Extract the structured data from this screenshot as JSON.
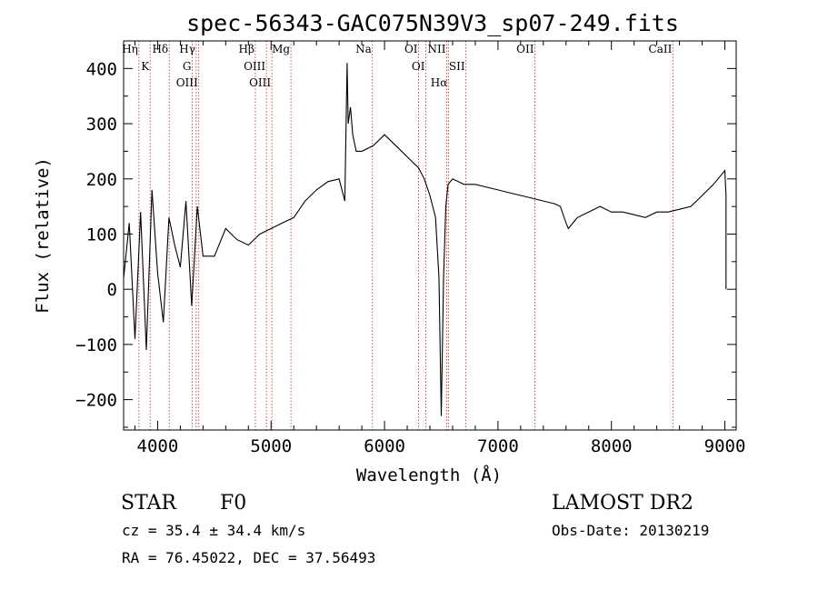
{
  "chart_data": {
    "type": "line",
    "title": "spec-56343-GAC075N39V3_sp07-249.fits",
    "xlabel": "Wavelength (Å)",
    "ylabel": "Flux (relative)",
    "xlim": [
      3700,
      9100
    ],
    "ylim": [
      -255,
      450
    ],
    "xticks": [
      4000,
      5000,
      6000,
      7000,
      8000,
      9000
    ],
    "xtick_labels": [
      "4000",
      "5000",
      "6000",
      "7000",
      "8000",
      "9000"
    ],
    "yticks": [
      -200,
      -100,
      0,
      100,
      200,
      300,
      400
    ],
    "ytick_labels": [
      "−200",
      "−100",
      "0",
      "100",
      "200",
      "300",
      "400"
    ],
    "grid": false,
    "series": [
      {
        "name": "spectrum",
        "x": [
          3700,
          3750,
          3800,
          3850,
          3900,
          3950,
          4000,
          4050,
          4100,
          4150,
          4200,
          4250,
          4300,
          4350,
          4400,
          4500,
          4600,
          4700,
          4800,
          4900,
          5000,
          5100,
          5200,
          5300,
          5400,
          5500,
          5600,
          5650,
          5670,
          5680,
          5700,
          5720,
          5750,
          5800,
          5900,
          6000,
          6100,
          6200,
          6300,
          6350,
          6400,
          6450,
          6480,
          6500,
          6520,
          6540,
          6560,
          6600,
          6700,
          6800,
          6900,
          7000,
          7100,
          7200,
          7300,
          7400,
          7500,
          7550,
          7600,
          7620,
          7700,
          7800,
          7900,
          8000,
          8100,
          8200,
          8300,
          8400,
          8500,
          8600,
          8700,
          8800,
          8900,
          9000,
          9010,
          9010
        ],
        "y": [
          20,
          120,
          -90,
          140,
          -110,
          180,
          30,
          -60,
          130,
          80,
          40,
          160,
          -30,
          150,
          60,
          60,
          110,
          90,
          80,
          100,
          110,
          120,
          130,
          160,
          180,
          195,
          200,
          160,
          410,
          300,
          330,
          280,
          250,
          250,
          260,
          280,
          260,
          240,
          220,
          200,
          170,
          130,
          20,
          -230,
          20,
          150,
          190,
          200,
          190,
          190,
          185,
          180,
          175,
          170,
          165,
          160,
          155,
          150,
          120,
          110,
          130,
          140,
          150,
          140,
          140,
          135,
          130,
          140,
          140,
          145,
          150,
          170,
          190,
          215,
          170,
          0
        ]
      }
    ],
    "spectral_lines": [
      {
        "label": "Hη",
        "wavelength": 3835
      },
      {
        "label": "K",
        "wavelength": 3934
      },
      {
        "label": "Hδ",
        "wavelength": 4102
      },
      {
        "label": "Hγ",
        "wavelength": 4340
      },
      {
        "label": "G",
        "wavelength": 4305
      },
      {
        "label": "OIII",
        "wavelength": 4363
      },
      {
        "label": "Hβ",
        "wavelength": 4861
      },
      {
        "label": "OIII",
        "wavelength": 4959
      },
      {
        "label": "OIII",
        "wavelength": 5007
      },
      {
        "label": "Mg",
        "wavelength": 5175
      },
      {
        "label": "Na",
        "wavelength": 5893
      },
      {
        "label": "OI",
        "wavelength": 6300
      },
      {
        "label": "OI",
        "wavelength": 6364
      },
      {
        "label": "NII",
        "wavelength": 6548
      },
      {
        "label": "Hα",
        "wavelength": 6563
      },
      {
        "label": "SII",
        "wavelength": 6717
      },
      {
        "label": "OII",
        "wavelength": 7325
      },
      {
        "label": "CaII",
        "wavelength": 8542
      }
    ]
  },
  "info": {
    "object_class": "STAR",
    "subclass": "F0",
    "survey": "LAMOST DR2",
    "cz": "cz = 35.4 ± 34.4 km/s",
    "obs_date": "Obs-Date: 20130219",
    "coords": "RA =  76.45022, DEC =  37.56493"
  },
  "colors": {
    "line_marker": "#cc2222",
    "spectrum": "#000000",
    "axes": "#000000"
  }
}
